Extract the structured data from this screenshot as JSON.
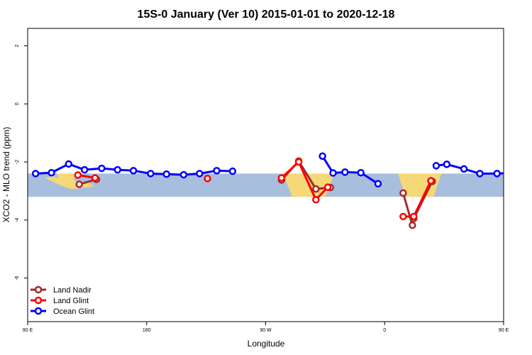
{
  "chart_data": {
    "type": "line",
    "title": "15S-0 January (Ver 10)   2015-01-01 to 2020-12-18",
    "xlabel": "Longitude",
    "ylabel": "XCO2 - MLO trend (ppm)",
    "xlim": [
      90,
      450
    ],
    "ylim": [
      -7.5,
      2.6
    ],
    "x_ticks": [
      {
        "value": 90,
        "label": "90 E"
      },
      {
        "value": 180,
        "label": "180"
      },
      {
        "value": 270,
        "label": "90 W"
      },
      {
        "value": 360,
        "label": "0"
      },
      {
        "value": 450,
        "label": "90 E"
      },
      {
        "value": 540,
        "label": "180"
      }
    ],
    "y_ticks": [
      2,
      0,
      -2,
      -4,
      -6
    ],
    "band": {
      "ymin": -3.2,
      "ymax": -2.4,
      "color": "#a8bede",
      "land_color": "#f5d877"
    },
    "land_masses": [
      {
        "name": "sumatra-java",
        "lon": [
          103,
          140
        ],
        "top": -2.45,
        "bottom": -2.9
      },
      {
        "name": "australia-west",
        "lon": [
          112,
          126
        ],
        "top": -2.4,
        "bottom": -2.75
      },
      {
        "name": "south-america",
        "lon": [
          283,
          322
        ],
        "top": -2.4,
        "bottom": -3.2
      },
      {
        "name": "africa",
        "lon": [
          370,
          403
        ],
        "top": -2.4,
        "bottom": -3.2
      },
      {
        "name": "sumatra-java-repeat",
        "lon": [
          463,
          500
        ],
        "top": -2.45,
        "bottom": -2.9
      }
    ],
    "legend": {
      "position": "bottom-left"
    },
    "series": [
      {
        "name": "Land Nadir",
        "color": "#a52a2a",
        "segments": [
          [
            [
              129,
              -2.77
            ],
            [
              142,
              -2.6
            ]
          ],
          [
            [
              282,
              -2.62
            ],
            [
              295,
              -1.97
            ],
            [
              308,
              -2.93
            ],
            [
              319,
              -2.88
            ]
          ],
          [
            [
              374,
              -3.07
            ],
            [
              381,
              -4.18
            ],
            [
              382,
              -3.95
            ],
            [
              396,
              -2.67
            ]
          ],
          [
            [
              489,
              -2.77
            ],
            [
              502,
              -2.6
            ]
          ]
        ]
      },
      {
        "name": "Land Glint",
        "color": "#ff0000",
        "segments": [
          [
            [
              128,
              -2.45
            ],
            [
              141,
              -2.55
            ]
          ],
          [
            [
              226,
              -2.57
            ]
          ],
          [
            [
              282,
              -2.55
            ],
            [
              295,
              -2.0
            ],
            [
              308,
              -3.3
            ],
            [
              317,
              -2.87
            ]
          ],
          [
            [
              374,
              -3.88
            ],
            [
              382,
              -3.88
            ],
            [
              395,
              -2.65
            ]
          ],
          [
            [
              488,
              -2.45
            ],
            [
              501,
              -2.55
            ]
          ]
        ]
      },
      {
        "name": "Ocean Glint",
        "color": "#0000ff",
        "segments": [
          [
            [
              96,
              -2.4
            ],
            [
              108,
              -2.37
            ],
            [
              121,
              -2.07
            ],
            [
              133,
              -2.27
            ],
            [
              146,
              -2.22
            ],
            [
              158,
              -2.27
            ],
            [
              170,
              -2.3
            ],
            [
              183,
              -2.4
            ],
            [
              195,
              -2.42
            ],
            [
              208,
              -2.44
            ],
            [
              220,
              -2.4
            ],
            [
              233,
              -2.3
            ],
            [
              245,
              -2.32
            ]
          ],
          [
            [
              313,
              -1.8
            ],
            [
              321,
              -2.38
            ],
            [
              330,
              -2.35
            ],
            [
              342,
              -2.37
            ],
            [
              355,
              -2.75
            ]
          ],
          [
            [
              399,
              -2.13
            ],
            [
              407,
              -2.08
            ],
            [
              420,
              -2.24
            ],
            [
              432,
              -2.4
            ],
            [
              445,
              -2.4
            ],
            [
              457,
              -2.37
            ],
            [
              470,
              -2.07
            ],
            [
              482,
              -2.27
            ],
            [
              495,
              -2.24
            ],
            [
              507,
              -2.29
            ]
          ]
        ]
      }
    ]
  }
}
